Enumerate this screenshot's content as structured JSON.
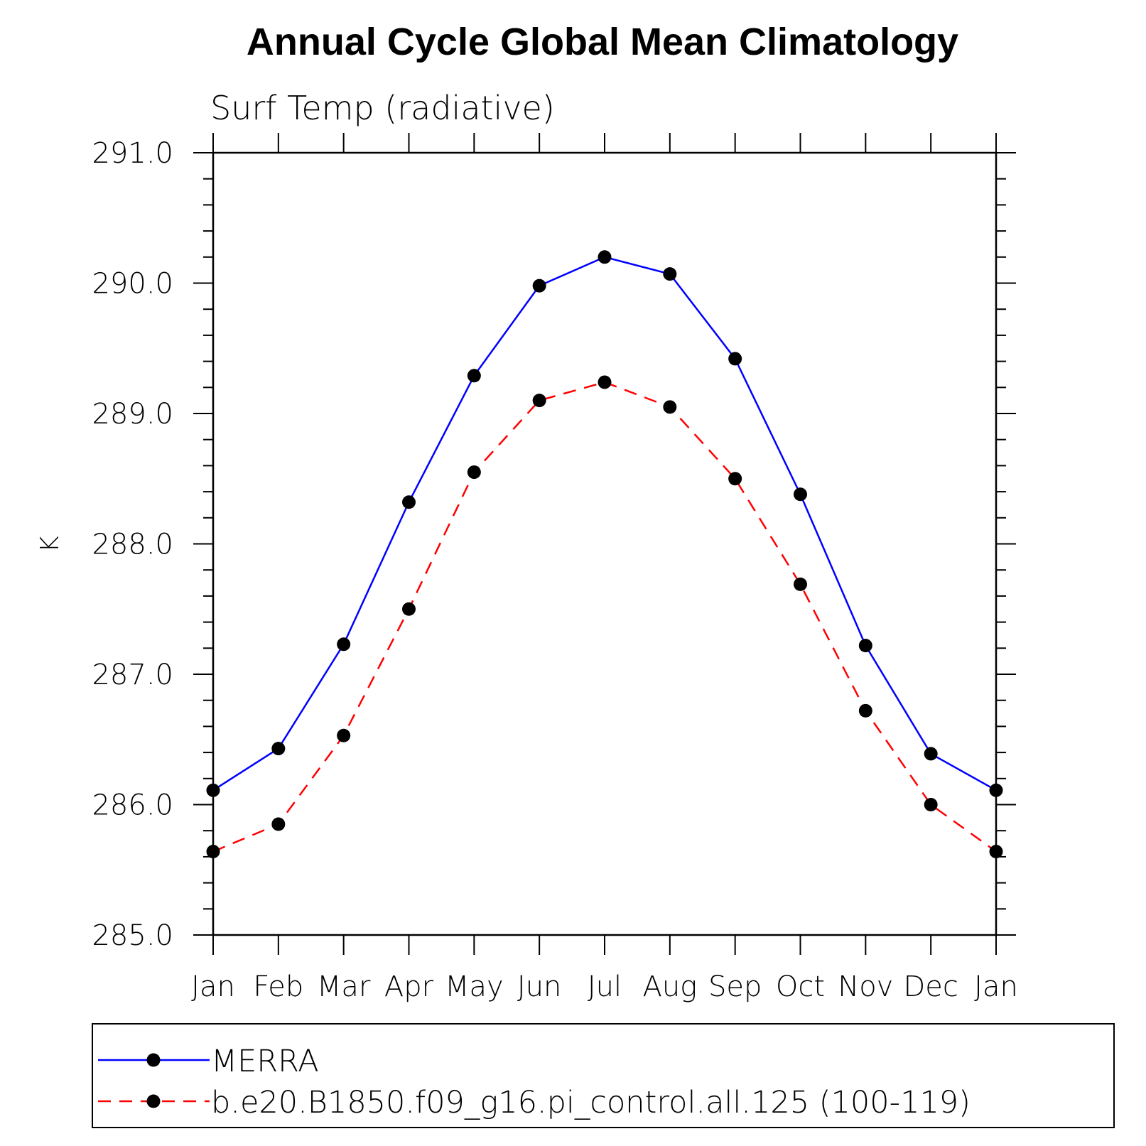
{
  "chart_data": {
    "type": "line",
    "title": "Annual Cycle Global Mean Climatology",
    "subtitle": "Surf Temp (radiative)",
    "ylabel": "K",
    "xlabel": "",
    "categories": [
      "Jan",
      "Feb",
      "Mar",
      "Apr",
      "May",
      "Jun",
      "Jul",
      "Aug",
      "Sep",
      "Oct",
      "Nov",
      "Dec",
      "Jan"
    ],
    "ylim": [
      285.0,
      291.0
    ],
    "yticks": [
      "285.0",
      "286.0",
      "287.0",
      "288.0",
      "289.0",
      "290.0",
      "291.0"
    ],
    "grid": false,
    "legend_position": "bottom",
    "series": [
      {
        "name": "MERRA",
        "color": "#0000ff",
        "dash": "solid",
        "marker": "filled-circle",
        "values": [
          286.11,
          286.43,
          287.23,
          288.32,
          289.29,
          289.98,
          290.2,
          290.07,
          289.42,
          288.38,
          287.22,
          286.39,
          286.11
        ]
      },
      {
        "name": "b.e20.B1850.f09_g16.pi_control.all.125 (100-119)",
        "color": "#ff0000",
        "dash": "dashed",
        "marker": "filled-circle",
        "values": [
          285.64,
          285.85,
          286.53,
          287.5,
          288.55,
          289.1,
          289.24,
          289.05,
          288.5,
          287.69,
          286.72,
          286.0,
          285.64
        ]
      }
    ]
  }
}
